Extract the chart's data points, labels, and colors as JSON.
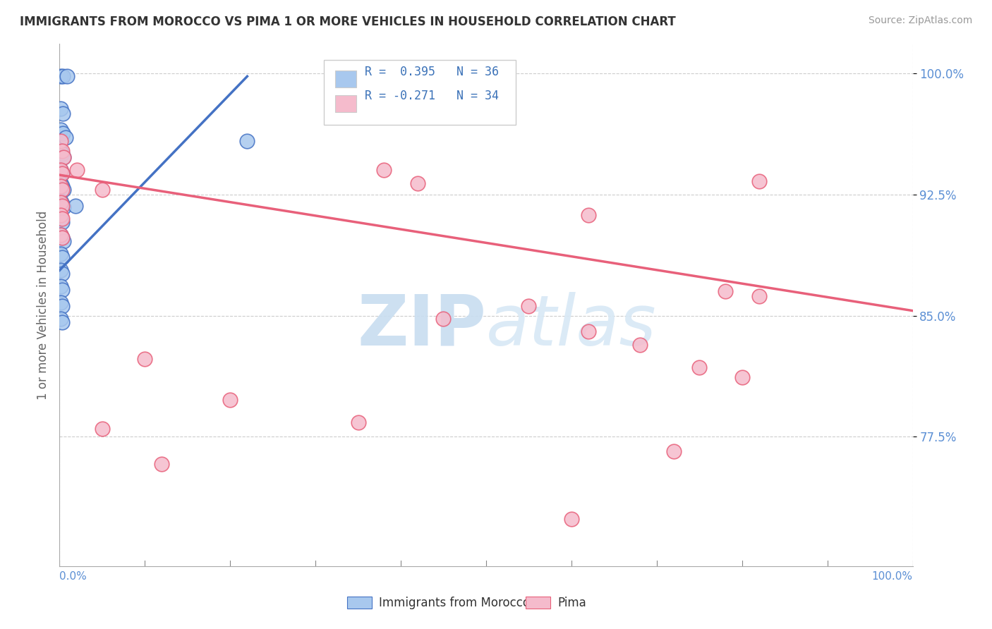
{
  "title": "IMMIGRANTS FROM MOROCCO VS PIMA 1 OR MORE VEHICLES IN HOUSEHOLD CORRELATION CHART",
  "source": "Source: ZipAtlas.com",
  "ylabel": "1 or more Vehicles in Household",
  "xmin": 0.0,
  "xmax": 1.0,
  "ymin": 0.695,
  "ymax": 1.018,
  "yticks": [
    0.775,
    0.85,
    0.925,
    1.0
  ],
  "ytick_labels": [
    "77.5%",
    "85.0%",
    "92.5%",
    "100.0%"
  ],
  "legend_r1": "R =  0.395   N = 36",
  "legend_r2": "R = -0.271   N = 34",
  "blue_color": "#A8C8EE",
  "pink_color": "#F5BBCC",
  "blue_line_color": "#4472C4",
  "pink_line_color": "#E8607A",
  "morocco_points": [
    [
      0.001,
      0.998
    ],
    [
      0.004,
      0.998
    ],
    [
      0.009,
      0.998
    ],
    [
      0.001,
      0.978
    ],
    [
      0.004,
      0.975
    ],
    [
      0.001,
      0.965
    ],
    [
      0.004,
      0.963
    ],
    [
      0.007,
      0.96
    ],
    [
      0.001,
      0.952
    ],
    [
      0.003,
      0.95
    ],
    [
      0.005,
      0.948
    ],
    [
      0.001,
      0.94
    ],
    [
      0.003,
      0.938
    ],
    [
      0.001,
      0.932
    ],
    [
      0.003,
      0.93
    ],
    [
      0.005,
      0.928
    ],
    [
      0.001,
      0.921
    ],
    [
      0.003,
      0.919
    ],
    [
      0.005,
      0.917
    ],
    [
      0.001,
      0.91
    ],
    [
      0.003,
      0.908
    ],
    [
      0.001,
      0.9
    ],
    [
      0.003,
      0.898
    ],
    [
      0.005,
      0.896
    ],
    [
      0.001,
      0.888
    ],
    [
      0.003,
      0.886
    ],
    [
      0.001,
      0.878
    ],
    [
      0.003,
      0.876
    ],
    [
      0.001,
      0.868
    ],
    [
      0.003,
      0.866
    ],
    [
      0.001,
      0.858
    ],
    [
      0.003,
      0.856
    ],
    [
      0.001,
      0.848
    ],
    [
      0.003,
      0.846
    ],
    [
      0.019,
      0.918
    ],
    [
      0.22,
      0.958
    ]
  ],
  "pima_points": [
    [
      0.001,
      0.958
    ],
    [
      0.003,
      0.952
    ],
    [
      0.005,
      0.948
    ],
    [
      0.001,
      0.94
    ],
    [
      0.003,
      0.938
    ],
    [
      0.001,
      0.93
    ],
    [
      0.003,
      0.928
    ],
    [
      0.001,
      0.92
    ],
    [
      0.003,
      0.918
    ],
    [
      0.001,
      0.912
    ],
    [
      0.003,
      0.91
    ],
    [
      0.001,
      0.9
    ],
    [
      0.003,
      0.898
    ],
    [
      0.02,
      0.94
    ],
    [
      0.05,
      0.928
    ],
    [
      0.38,
      0.94
    ],
    [
      0.42,
      0.932
    ],
    [
      0.82,
      0.933
    ],
    [
      0.62,
      0.912
    ],
    [
      0.78,
      0.865
    ],
    [
      0.82,
      0.862
    ],
    [
      0.55,
      0.856
    ],
    [
      0.45,
      0.848
    ],
    [
      0.62,
      0.84
    ],
    [
      0.68,
      0.832
    ],
    [
      0.75,
      0.818
    ],
    [
      0.8,
      0.812
    ],
    [
      0.1,
      0.823
    ],
    [
      0.2,
      0.798
    ],
    [
      0.35,
      0.784
    ],
    [
      0.05,
      0.78
    ],
    [
      0.12,
      0.758
    ],
    [
      0.6,
      0.724
    ],
    [
      0.72,
      0.766
    ]
  ],
  "blue_trendline_x": [
    0.0,
    0.22
  ],
  "blue_trendline_y": [
    0.878,
    0.998
  ],
  "pink_trendline_x": [
    0.0,
    1.0
  ],
  "pink_trendline_y": [
    0.937,
    0.853
  ]
}
